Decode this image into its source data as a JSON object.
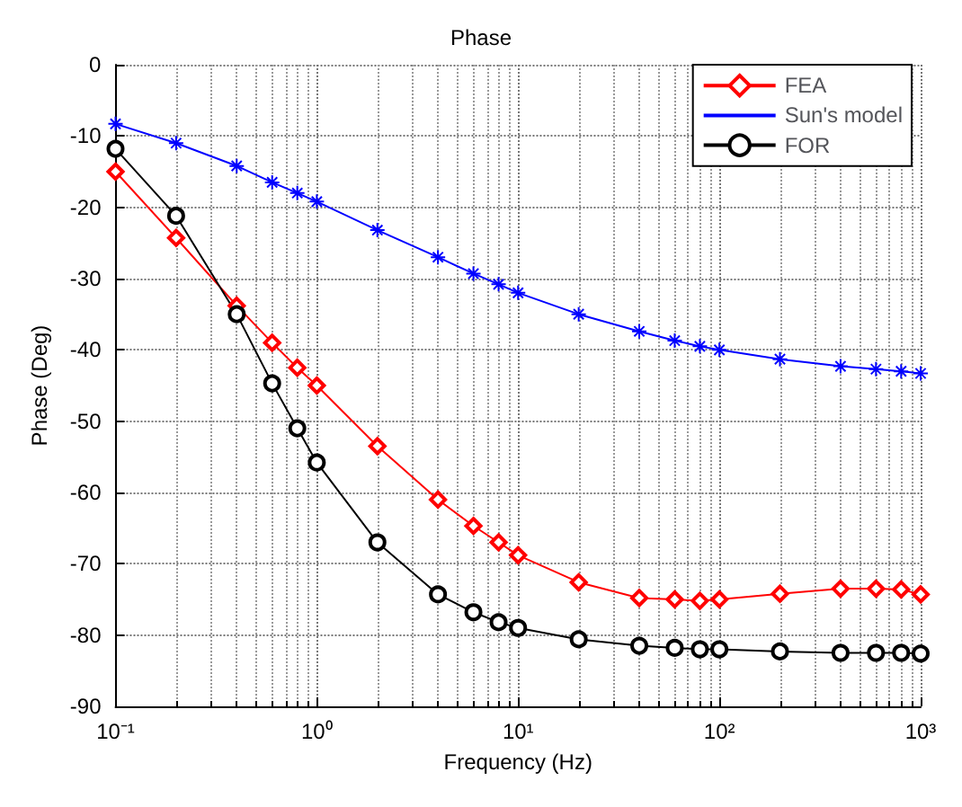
{
  "chart_data": {
    "type": "line",
    "title": "Phase",
    "xlabel": "Frequency (Hz)",
    "ylabel": "Phase (Deg)",
    "x": [
      0.1,
      0.2,
      0.4,
      0.6,
      0.8,
      1,
      2,
      4,
      6,
      8,
      10,
      20,
      40,
      60,
      80,
      100,
      200,
      400,
      600,
      800,
      1000
    ],
    "series": [
      {
        "name": "FEA",
        "color": "#ff0000",
        "marker": "diamond",
        "values": [
          -15,
          -24.3,
          -33.8,
          -39,
          -42.5,
          -45,
          -53.5,
          -61,
          -64.7,
          -67,
          -68.8,
          -72.6,
          -74.8,
          -75,
          -75.2,
          -75,
          -74.2,
          -73.5,
          -73.5,
          -73.6,
          -74.3
        ]
      },
      {
        "name": "Sun's model",
        "color": "#0000ff",
        "marker": "cross",
        "values": [
          -8.3,
          -11,
          -14.2,
          -16.5,
          -18,
          -19.2,
          -23.2,
          -27,
          -29.3,
          -30.8,
          -32,
          -35,
          -37.4,
          -38.7,
          -39.5,
          -40,
          -41.3,
          -42.3,
          -42.7,
          -43,
          -43.3
        ]
      },
      {
        "name": "FOR",
        "color": "#000000",
        "marker": "circle",
        "values": [
          -11.8,
          -21.2,
          -35,
          -44.7,
          -51,
          -55.8,
          -67,
          -74.3,
          -76.8,
          -78.2,
          -79,
          -80.6,
          -81.5,
          -81.8,
          -82,
          -82,
          -82.3,
          -82.5,
          -82.5,
          -82.5,
          -82.6
        ]
      }
    ],
    "log": "x",
    "xlim": [
      0.1,
      1000
    ],
    "ylim": [
      -90,
      0
    ],
    "xticks": [
      {
        "value": 0.1,
        "label": "10⁻¹"
      },
      {
        "value": 1,
        "label": "10⁰"
      },
      {
        "value": 10,
        "label": "10¹"
      },
      {
        "value": 100,
        "label": "10²"
      },
      {
        "value": 1000,
        "label": "10³"
      }
    ],
    "yticks": [
      -90,
      -80,
      -70,
      -60,
      -50,
      -40,
      -30,
      -20,
      -10,
      0
    ],
    "grid": true,
    "legend": "top right",
    "line_style": "solid"
  }
}
